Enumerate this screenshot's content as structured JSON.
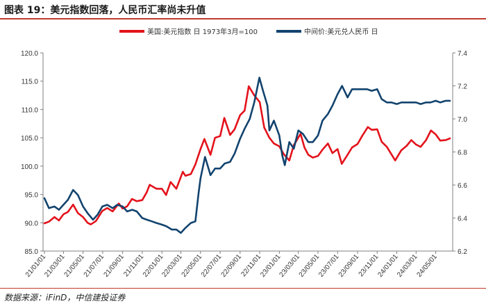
{
  "title": "图表 19：美元指数回落，人民币汇率尚未升值",
  "source": "数据来源：iFinD，中信建投证券",
  "chart_data": {
    "type": "line",
    "title": "",
    "xlabel": "",
    "ylabel_left": "",
    "ylabel_right": "",
    "ylim_left": [
      85,
      120
    ],
    "yticks_left": [
      "85.0",
      "90.0",
      "95.0",
      "100.0",
      "105.0",
      "110.0",
      "115.0",
      "120.0"
    ],
    "ylim_right": [
      6.2,
      7.4
    ],
    "yticks_right": [
      "6.2",
      "6.4",
      "6.6",
      "6.8",
      "7.0",
      "7.2",
      "7.4"
    ],
    "x_tick_labels": [
      "21/01/01",
      "21/03/01",
      "21/05/01",
      "21/07/01",
      "21/09/01",
      "21/11/01",
      "22/01/01",
      "22/03/01",
      "22/05/01",
      "22/07/01",
      "22/09/01",
      "22/11/01",
      "23/01/01",
      "23/03/01",
      "23/05/01",
      "23/07/01",
      "23/09/01",
      "23/11/01",
      "24/01/01",
      "24/03/01",
      "24/05/01"
    ],
    "grid": false,
    "legend_position": "top-center",
    "series": [
      {
        "name": "美国:美元指数 日 1973年3月=100",
        "axis": "left",
        "color": "#e3121b",
        "x": [
          "2021-01-01",
          "2021-01-15",
          "2021-02-01",
          "2021-02-15",
          "2021-03-01",
          "2021-03-15",
          "2021-03-31",
          "2021-04-15",
          "2021-05-01",
          "2021-05-15",
          "2021-05-25",
          "2021-06-10",
          "2021-06-30",
          "2021-07-15",
          "2021-08-01",
          "2021-08-20",
          "2021-09-01",
          "2021-09-15",
          "2021-09-30",
          "2021-10-15",
          "2021-11-01",
          "2021-11-15",
          "2021-11-24",
          "2021-12-15",
          "2022-01-01",
          "2022-01-14",
          "2022-01-28",
          "2022-02-15",
          "2022-03-07",
          "2022-03-15",
          "2022-04-01",
          "2022-04-15",
          "2022-05-01",
          "2022-05-13",
          "2022-06-01",
          "2022-06-15",
          "2022-07-01",
          "2022-07-14",
          "2022-08-01",
          "2022-08-15",
          "2022-09-01",
          "2022-09-15",
          "2022-09-28",
          "2022-10-15",
          "2022-11-01",
          "2022-11-15",
          "2022-12-01",
          "2022-12-15",
          "2023-01-01",
          "2023-01-15",
          "2023-02-01",
          "2023-02-15",
          "2023-03-08",
          "2023-03-20",
          "2023-04-01",
          "2023-04-15",
          "2023-05-01",
          "2023-05-15",
          "2023-06-01",
          "2023-06-15",
          "2023-07-01",
          "2023-07-14",
          "2023-08-01",
          "2023-08-15",
          "2023-09-01",
          "2023-09-15",
          "2023-10-03",
          "2023-10-15",
          "2023-11-01",
          "2023-11-15",
          "2023-12-01",
          "2023-12-27",
          "2024-01-15",
          "2024-02-01",
          "2024-02-15",
          "2024-03-01",
          "2024-03-15",
          "2024-04-01",
          "2024-04-16",
          "2024-05-01",
          "2024-05-15",
          "2024-06-01",
          "2024-06-14"
        ],
        "values": [
          89.9,
          90.2,
          91.0,
          90.4,
          91.5,
          91.9,
          93.2,
          91.7,
          91.0,
          90.0,
          89.7,
          90.3,
          92.1,
          92.6,
          92.0,
          93.4,
          92.5,
          92.9,
          94.2,
          93.8,
          94.0,
          95.4,
          96.7,
          96.0,
          96.0,
          94.9,
          97.2,
          96.0,
          99.0,
          98.3,
          98.6,
          100.3,
          103.0,
          104.8,
          102.0,
          105.0,
          105.3,
          108.5,
          105.5,
          106.5,
          109.0,
          109.8,
          114.1,
          112.5,
          111.3,
          106.8,
          105.0,
          104.0,
          103.5,
          102.1,
          101.0,
          103.7,
          105.7,
          103.3,
          102.0,
          101.5,
          101.8,
          102.9,
          104.0,
          102.3,
          103.0,
          100.4,
          102.0,
          103.3,
          103.9,
          105.3,
          106.9,
          106.4,
          106.5,
          104.3,
          103.4,
          101.0,
          102.8,
          103.6,
          104.6,
          103.8,
          103.4,
          104.6,
          106.3,
          105.6,
          104.5,
          104.6,
          104.9
        ]
      },
      {
        "name": "中间价:美元兑人民币 日",
        "axis": "right",
        "color": "#12436e",
        "x": [
          "2021-01-01",
          "2021-01-15",
          "2021-02-01",
          "2021-02-15",
          "2021-03-01",
          "2021-03-15",
          "2021-03-31",
          "2021-04-15",
          "2021-05-01",
          "2021-05-15",
          "2021-06-01",
          "2021-06-15",
          "2021-06-30",
          "2021-07-15",
          "2021-08-01",
          "2021-08-15",
          "2021-09-01",
          "2021-09-15",
          "2021-10-01",
          "2021-10-15",
          "2021-11-01",
          "2021-11-15",
          "2021-12-01",
          "2021-12-15",
          "2022-01-01",
          "2022-01-15",
          "2022-02-01",
          "2022-02-15",
          "2022-03-01",
          "2022-03-15",
          "2022-04-01",
          "2022-04-15",
          "2022-04-25",
          "2022-05-01",
          "2022-05-15",
          "2022-06-01",
          "2022-06-15",
          "2022-07-01",
          "2022-07-15",
          "2022-08-01",
          "2022-08-15",
          "2022-09-01",
          "2022-09-15",
          "2022-10-01",
          "2022-10-15",
          "2022-10-31",
          "2022-11-10",
          "2022-11-25",
          "2022-12-01",
          "2022-12-15",
          "2023-01-01",
          "2023-01-10",
          "2023-01-18",
          "2023-02-01",
          "2023-02-15",
          "2023-03-01",
          "2023-03-15",
          "2023-04-01",
          "2023-04-15",
          "2023-05-01",
          "2023-05-15",
          "2023-06-01",
          "2023-06-15",
          "2023-07-01",
          "2023-07-15",
          "2023-08-01",
          "2023-08-15",
          "2023-09-01",
          "2023-09-15",
          "2023-10-01",
          "2023-10-15",
          "2023-11-01",
          "2023-11-15",
          "2023-12-01",
          "2023-12-15",
          "2024-01-01",
          "2024-01-15",
          "2024-02-01",
          "2024-02-15",
          "2024-03-01",
          "2024-03-15",
          "2024-04-01",
          "2024-04-15",
          "2024-05-01",
          "2024-05-15",
          "2024-06-01",
          "2024-06-14"
        ],
        "values": [
          6.52,
          6.46,
          6.47,
          6.45,
          6.48,
          6.51,
          6.57,
          6.54,
          6.47,
          6.43,
          6.39,
          6.42,
          6.47,
          6.48,
          6.46,
          6.48,
          6.47,
          6.44,
          6.45,
          6.44,
          6.4,
          6.39,
          6.38,
          6.37,
          6.36,
          6.35,
          6.33,
          6.33,
          6.31,
          6.34,
          6.37,
          6.38,
          6.55,
          6.64,
          6.77,
          6.66,
          6.7,
          6.7,
          6.73,
          6.74,
          6.79,
          6.88,
          6.94,
          7.0,
          7.1,
          7.25,
          7.18,
          7.08,
          6.93,
          6.99,
          6.9,
          6.78,
          6.72,
          6.86,
          6.82,
          6.93,
          6.91,
          6.86,
          6.86,
          6.9,
          6.99,
          7.03,
          7.08,
          7.15,
          7.2,
          7.13,
          7.18,
          7.18,
          7.18,
          7.18,
          7.17,
          7.18,
          7.12,
          7.1,
          7.1,
          7.09,
          7.1,
          7.1,
          7.1,
          7.1,
          7.09,
          7.1,
          7.1,
          7.11,
          7.1,
          7.11,
          7.11
        ]
      }
    ]
  }
}
